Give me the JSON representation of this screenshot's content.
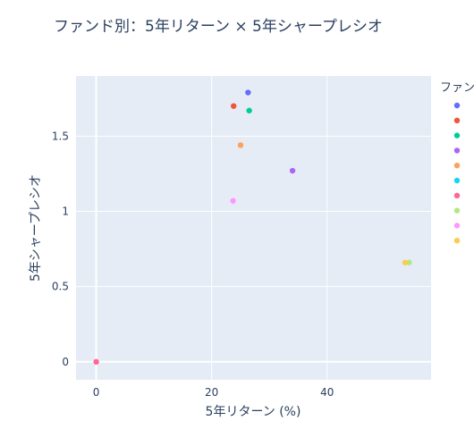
{
  "chart_data": {
    "type": "scatter",
    "title": "ファンド別：5年リターン × 5年シャープレシオ",
    "xlabel": "5年リターン (%)",
    "ylabel": "5年シャープレシオ",
    "xlim": [
      -3.5,
      58
    ],
    "ylim": [
      -0.12,
      1.9
    ],
    "x_ticks": [
      0,
      20,
      40
    ],
    "y_ticks": [
      0,
      0.5,
      1,
      1.5
    ],
    "y_tick_labels": [
      "0",
      "0.5",
      "1",
      "1.5"
    ],
    "grid": true,
    "legend": {
      "title": "ファン",
      "placement": "right"
    },
    "series": [
      {
        "color": "#636efa",
        "x": [
          26.3
        ],
        "y": [
          1.79
        ]
      },
      {
        "color": "#EF553B",
        "x": [
          23.8
        ],
        "y": [
          1.7
        ]
      },
      {
        "color": "#00cc96",
        "x": [
          26.5
        ],
        "y": [
          1.67
        ]
      },
      {
        "color": "#ab63fa",
        "x": [
          34.0
        ],
        "y": [
          1.27
        ]
      },
      {
        "color": "#FFA15A",
        "x": [
          25.0
        ],
        "y": [
          1.44
        ]
      },
      {
        "color": "#19d3f3",
        "x": [],
        "y": []
      },
      {
        "color": "#FF6692",
        "x": [
          0.0
        ],
        "y": [
          0.0
        ]
      },
      {
        "color": "#B6E880",
        "x": [
          54.2
        ],
        "y": [
          0.66
        ]
      },
      {
        "color": "#FF97FF",
        "x": [
          23.7
        ],
        "y": [
          1.07
        ]
      },
      {
        "color": "#FECB52",
        "x": [
          53.5
        ],
        "y": [
          0.66
        ]
      }
    ]
  }
}
